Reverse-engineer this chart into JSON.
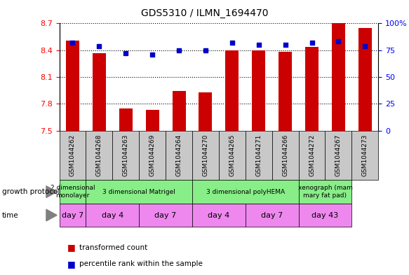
{
  "title": "GDS5310 / ILMN_1694470",
  "samples": [
    "GSM1044262",
    "GSM1044268",
    "GSM1044263",
    "GSM1044269",
    "GSM1044264",
    "GSM1044270",
    "GSM1044265",
    "GSM1044271",
    "GSM1044266",
    "GSM1044272",
    "GSM1044267",
    "GSM1044273"
  ],
  "transformed_counts": [
    8.51,
    8.37,
    7.75,
    7.73,
    7.94,
    7.93,
    8.4,
    8.4,
    8.38,
    8.44,
    8.7,
    8.65
  ],
  "percentile_ranks": [
    82,
    79,
    72,
    71,
    75,
    75,
    82,
    80,
    80,
    82,
    83,
    79
  ],
  "ylim_left": [
    7.5,
    8.7
  ],
  "ylim_right": [
    0,
    100
  ],
  "yticks_left": [
    7.5,
    7.8,
    8.1,
    8.4,
    8.7
  ],
  "ytick_labels_left": [
    "7.5",
    "7.8",
    "8.1",
    "8.4",
    "8.7"
  ],
  "yticks_right": [
    0,
    25,
    50,
    75,
    100
  ],
  "ytick_labels_right": [
    "0",
    "25",
    "50",
    "75",
    "100%"
  ],
  "bar_color": "#cc0000",
  "dot_color": "#0000cc",
  "bar_bottom": 7.5,
  "growth_protocol_groups": [
    {
      "label": "2 dimensional\nmonolayer",
      "start": 0,
      "end": 1
    },
    {
      "label": "3 dimensional Matrigel",
      "start": 1,
      "end": 5
    },
    {
      "label": "3 dimensional polyHEMA",
      "start": 5,
      "end": 9
    },
    {
      "label": "xenograph (mam\nmary fat pad)",
      "start": 9,
      "end": 11
    }
  ],
  "time_groups": [
    {
      "label": "day 7",
      "start": 0,
      "end": 1
    },
    {
      "label": "day 4",
      "start": 1,
      "end": 3
    },
    {
      "label": "day 7",
      "start": 3,
      "end": 5
    },
    {
      "label": "day 4",
      "start": 5,
      "end": 7
    },
    {
      "label": "day 7",
      "start": 7,
      "end": 9
    },
    {
      "label": "day 43",
      "start": 9,
      "end": 11
    }
  ],
  "legend_labels": [
    "transformed count",
    "percentile rank within the sample"
  ],
  "legend_colors": [
    "#cc0000",
    "#0000cc"
  ],
  "gp_color": "#88ee88",
  "time_color": "#ee88ee",
  "sample_bg_color": "#c8c8c8",
  "bar_width": 0.5,
  "dot_size": 18
}
